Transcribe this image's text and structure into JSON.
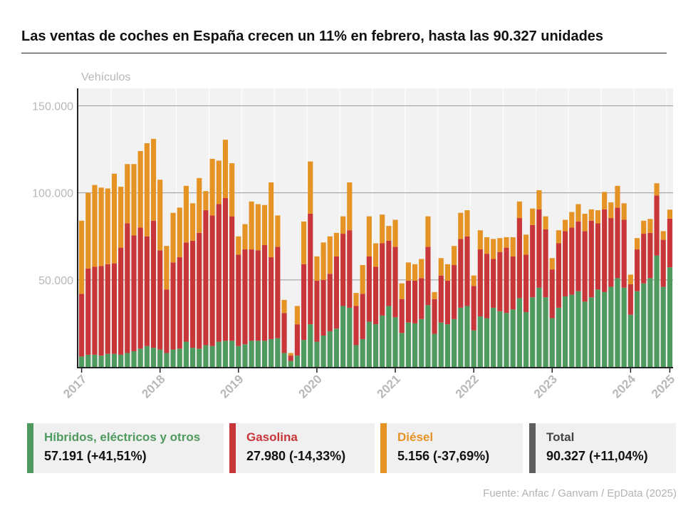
{
  "title": "Las ventas de coches en España crecen un 11% en febrero, hasta las 90.327 unidades",
  "source": "Fuente: Anfac / Ganvam / EpData (2025)",
  "colors": {
    "hybrid": "#4f9a5e",
    "gasoline": "#c8363a",
    "diesel": "#e69325",
    "total": "#5f5f5f",
    "grid": "#999999",
    "axis_text": "#b8b8b8",
    "plot_bg": "#f2f2f2"
  },
  "legend": [
    {
      "key": "hybrid",
      "label": "Híbridos, eléctricos y otros",
      "value": "57.191 (+41,51%)"
    },
    {
      "key": "gasoline",
      "label": "Gasolina",
      "value": "27.980 (-14,33%)"
    },
    {
      "key": "diesel",
      "label": "Diésel",
      "value": "5.156 (-37,69%)"
    },
    {
      "key": "total",
      "label": "Total",
      "value": "90.327 (+11,04%)"
    }
  ],
  "chart_data": {
    "type": "bar",
    "stacked": true,
    "ylabel": "Vehículos",
    "ylim": [
      0,
      160000
    ],
    "yticks": [
      50000,
      100000,
      150000
    ],
    "ytick_labels": [
      "50.000",
      "100.000",
      "150.000"
    ],
    "grid": true,
    "start_month": "2017-01",
    "xtick_labels": [
      "2017",
      "2018",
      "2019",
      "2020",
      "2021",
      "2022",
      "2023",
      "2024",
      "2025"
    ],
    "series": [
      {
        "name": "Híbridos, eléctricos y otros",
        "values": [
          6000,
          7000,
          7000,
          6500,
          7500,
          7500,
          7000,
          8000,
          9000,
          10500,
          12000,
          11000,
          10000,
          8000,
          10000,
          10500,
          14500,
          11000,
          10500,
          12500,
          12000,
          14500,
          15000,
          15000,
          12000,
          13000,
          15000,
          15000,
          15000,
          16000,
          16500,
          8000,
          3500,
          6500,
          15500,
          24500,
          14500,
          18000,
          20500,
          22000,
          35000,
          34000,
          12500,
          16000,
          26000,
          24500,
          29500,
          35000,
          28500,
          19500,
          25500,
          25000,
          27500,
          35500,
          19000,
          25500,
          24500,
          27500,
          34000,
          35000,
          21000,
          29000,
          28000,
          34000,
          32000,
          31000,
          33000,
          39500,
          31500,
          40000,
          45500,
          40000,
          28000,
          34000,
          40500,
          41500,
          43500,
          37500,
          40000,
          44500,
          43000,
          46000,
          51000,
          45500,
          30000,
          43500,
          48000,
          51000,
          64000,
          46000,
          57191
        ]
      },
      {
        "name": "Gasolina",
        "values": [
          36000,
          49500,
          50500,
          51500,
          51500,
          52000,
          61500,
          74500,
          66500,
          69500,
          63000,
          73000,
          57000,
          36500,
          50000,
          52500,
          57000,
          61500,
          66500,
          77500,
          75000,
          79000,
          82000,
          71500,
          52500,
          54500,
          52500,
          52000,
          55000,
          47000,
          52500,
          23000,
          3000,
          18000,
          43500,
          63500,
          35000,
          32000,
          33000,
          41500,
          41500,
          44500,
          22500,
          26000,
          37500,
          33000,
          41500,
          37500,
          40500,
          19500,
          24000,
          24500,
          23500,
          33500,
          20000,
          27000,
          25000,
          31000,
          39500,
          40000,
          25500,
          38500,
          37000,
          28000,
          34000,
          37500,
          30500,
          46000,
          33000,
          41500,
          45000,
          39000,
          28000,
          37000,
          37500,
          38500,
          40000,
          40500,
          44000,
          38000,
          47500,
          39500,
          40500,
          39000,
          17500,
          24000,
          28500,
          26000,
          34500,
          27000,
          27980
        ]
      },
      {
        "name": "Diésel",
        "values": [
          42000,
          43500,
          47000,
          45000,
          43500,
          51500,
          35000,
          34000,
          41000,
          44000,
          53500,
          47000,
          40500,
          25000,
          28500,
          28500,
          32500,
          21500,
          31500,
          11000,
          32500,
          25000,
          33500,
          30500,
          10500,
          14500,
          27500,
          26500,
          23000,
          43000,
          18000,
          7500,
          1500,
          10500,
          24500,
          30000,
          14000,
          21500,
          21500,
          13500,
          10000,
          27500,
          7500,
          16500,
          23000,
          13500,
          16500,
          8500,
          15500,
          9000,
          10500,
          9500,
          11000,
          17500,
          4000,
          10000,
          9500,
          11000,
          15000,
          15000,
          6000,
          11000,
          9500,
          11500,
          8000,
          6000,
          11000,
          9500,
          11500,
          9500,
          11000,
          7500,
          6500,
          7500,
          6500,
          9000,
          10000,
          10000,
          6500,
          7500,
          10000,
          9000,
          12500,
          9500,
          5500,
          6500,
          7500,
          8000,
          7000,
          5000,
          5156
        ]
      }
    ]
  }
}
